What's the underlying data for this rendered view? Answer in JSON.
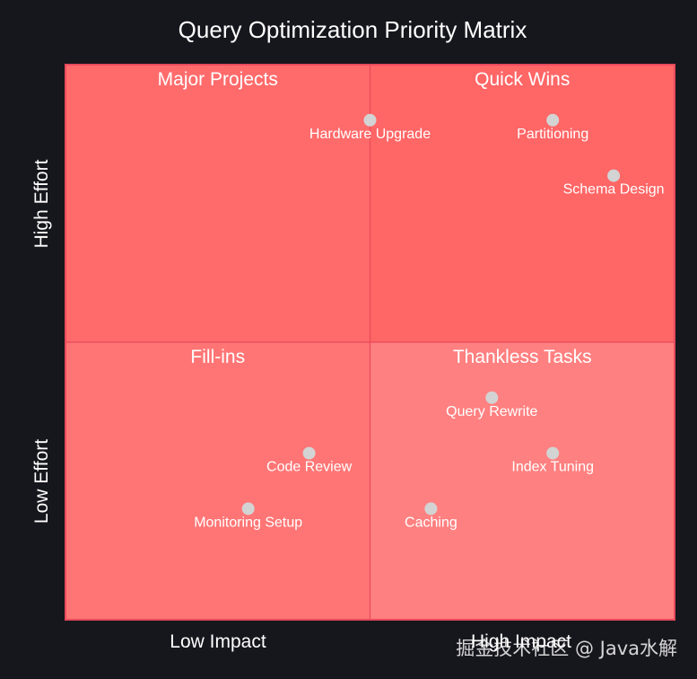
{
  "chart_data": {
    "type": "scatter",
    "title": "Query Optimization Priority Matrix",
    "x_axis": {
      "range": [
        0,
        1
      ],
      "labels": [
        "Low Impact",
        "High Impact"
      ]
    },
    "y_axis": {
      "range": [
        0,
        1
      ],
      "labels": [
        "Low Effort",
        "High Effort"
      ]
    },
    "quadrants": [
      {
        "position": "top-left",
        "label": "Major Projects"
      },
      {
        "position": "top-right",
        "label": "Quick Wins"
      },
      {
        "position": "bottom-left",
        "label": "Fill-ins"
      },
      {
        "position": "bottom-right",
        "label": "Thankless Tasks"
      }
    ],
    "points": [
      {
        "label": "Hardware Upgrade",
        "x": 0.5,
        "y": 0.9
      },
      {
        "label": "Partitioning",
        "x": 0.8,
        "y": 0.9
      },
      {
        "label": "Schema Design",
        "x": 0.9,
        "y": 0.8
      },
      {
        "label": "Query Rewrite",
        "x": 0.7,
        "y": 0.4
      },
      {
        "label": "Index Tuning",
        "x": 0.8,
        "y": 0.3
      },
      {
        "label": "Caching",
        "x": 0.6,
        "y": 0.2
      },
      {
        "label": "Code Review",
        "x": 0.4,
        "y": 0.3
      },
      {
        "label": "Monitoring Setup",
        "x": 0.3,
        "y": 0.2
      }
    ],
    "colors": {
      "background": "#16161d",
      "quadrant_top_left": "#ff6b6b",
      "quadrant_top_right": "#ff6666",
      "quadrant_bottom_left": "#ff7575",
      "quadrant_bottom_right": "#ff8080",
      "border": "#e84a5c",
      "point": "#d3d3d3"
    }
  },
  "watermark": "掘金技术社区 @ Java水解"
}
